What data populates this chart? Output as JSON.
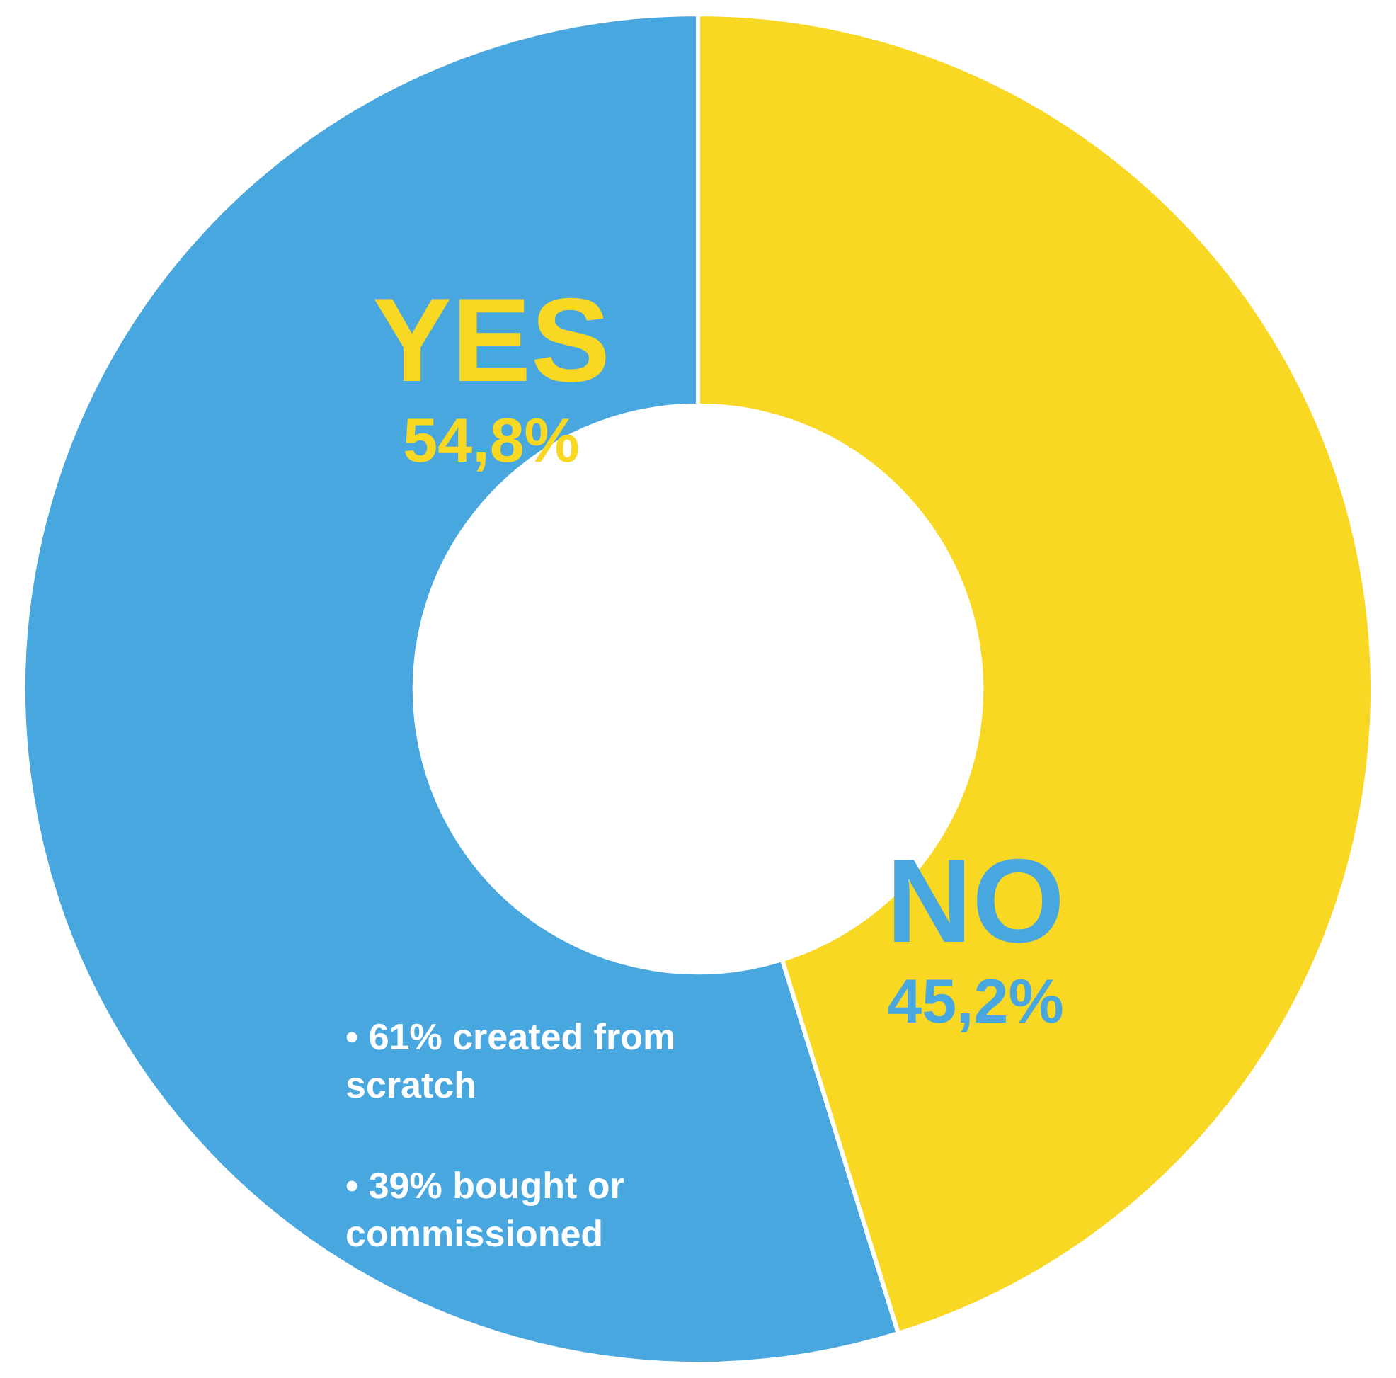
{
  "chart_data": {
    "type": "donut",
    "categories": [
      "YES",
      "NO"
    ],
    "values": [
      54.8,
      45.2
    ],
    "colors": [
      "#48a7de",
      "#f8d823"
    ],
    "value_labels": [
      "54,8%",
      "45,2%"
    ],
    "annotations": [
      "• 61% created from scratch",
      "• 39% bought or commissioned"
    ],
    "legend": false
  }
}
